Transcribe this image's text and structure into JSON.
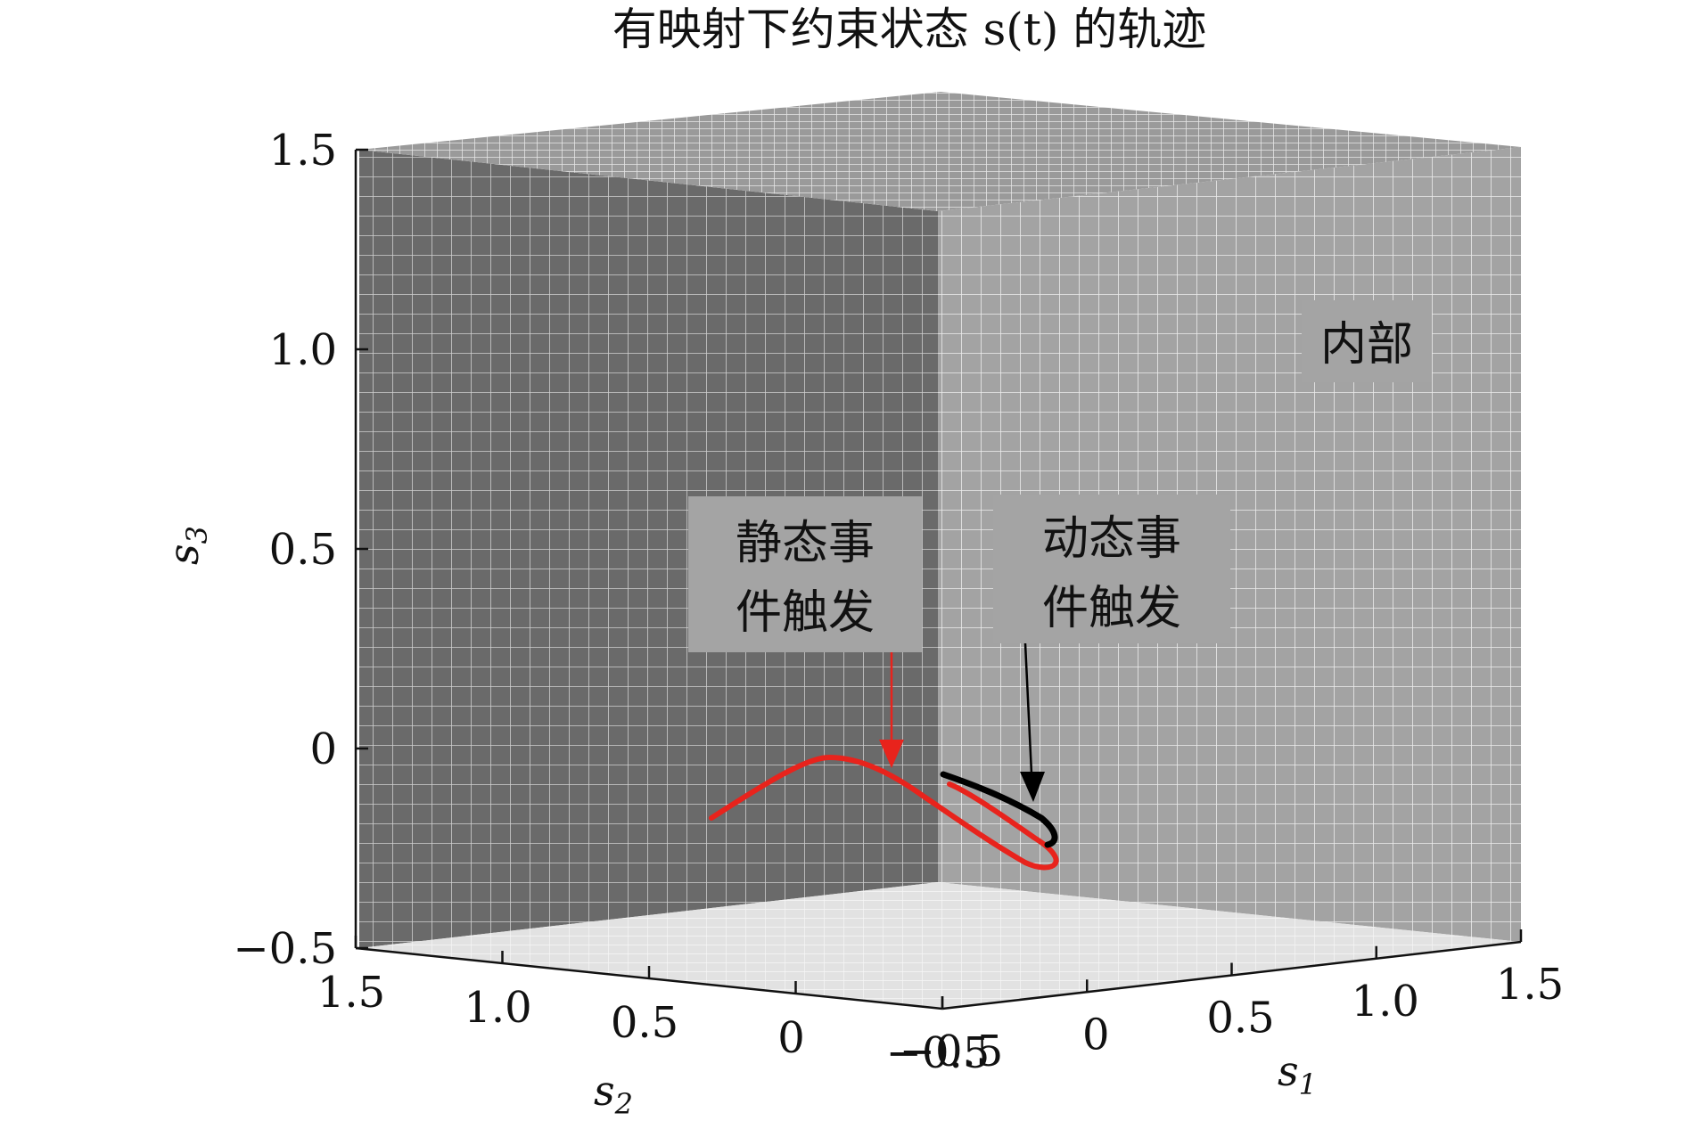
{
  "chart_data": {
    "type": "line3d",
    "title": "有映射下约束状态 s(t) 的轨迹",
    "xlabel": "s1",
    "ylabel": "s2",
    "zlabel": "s3",
    "xlim": [
      -0.5,
      1.5
    ],
    "ylim": [
      -0.5,
      1.5
    ],
    "zlim": [
      -0.5,
      1.5
    ],
    "x_ticks": [
      "−0.5",
      "0",
      "0.5",
      "1.0",
      "1.5"
    ],
    "y_ticks": [
      "1.5",
      "1.0",
      "0.5",
      "0",
      "−0.5"
    ],
    "z_ticks": [
      "1.5",
      "1.0",
      "0.5",
      "0",
      "−0.5"
    ],
    "grid": true,
    "annotations": {
      "static": {
        "line1": "静态事",
        "line2": "件触发",
        "color": "#e8231c"
      },
      "dynamic": {
        "line1": "动态事",
        "line2": "件触发",
        "color": "#000000"
      },
      "interior": {
        "text": "内部"
      }
    },
    "series": [
      {
        "color": "#e8231c"
      },
      {
        "color": "#000000"
      }
    ]
  }
}
